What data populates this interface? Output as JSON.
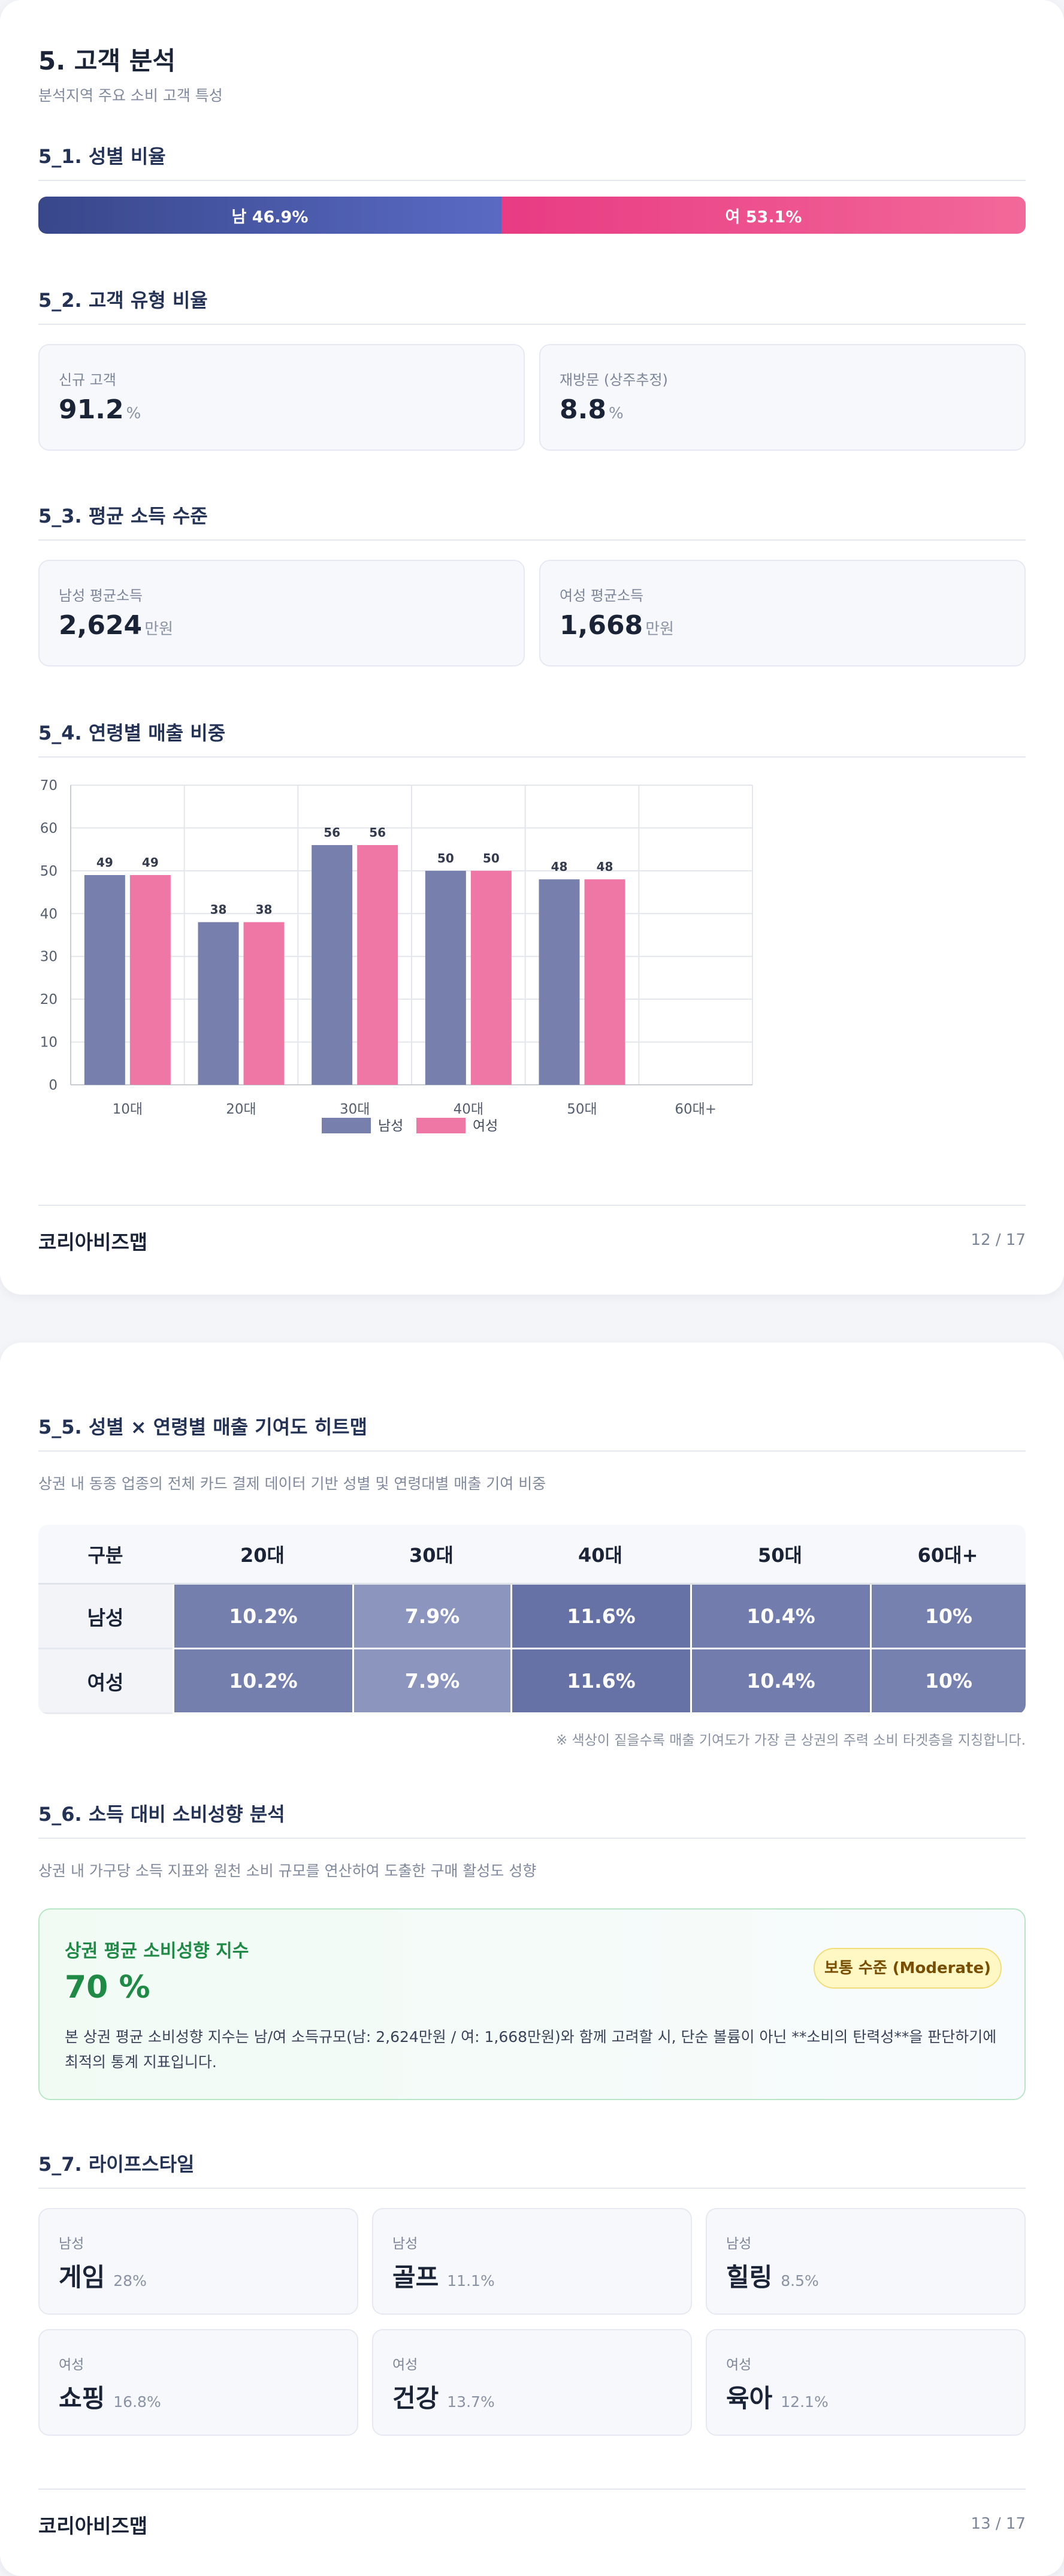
{
  "page1": {
    "title": "5. 고객 분석",
    "subtitle": "분석지역 주요 소비 고객 특성",
    "gender": {
      "heading": "5_1. 성별 비율",
      "male_label": "남 46.9%",
      "female_label": "여 53.1%",
      "male_share": 46.9,
      "female_share": 53.1
    },
    "customer_type": {
      "heading": "5_2. 고객 유형 비율",
      "cards": [
        {
          "label": "신규 고객",
          "value": "91.2",
          "unit": "%"
        },
        {
          "label": "재방문 (상주추정)",
          "value": "8.8",
          "unit": "%"
        }
      ]
    },
    "income": {
      "heading": "5_3. 평균 소득 수준",
      "cards": [
        {
          "label": "남성 평균소득",
          "value": "2,624",
          "unit": "만원"
        },
        {
          "label": "여성 평균소득",
          "value": "1,668",
          "unit": "만원"
        }
      ]
    },
    "age_sales": {
      "heading": "5_4. 연령별 매출 비중"
    },
    "footer": {
      "brand": "코리아비즈맵",
      "page": "12 / 17"
    }
  },
  "chart_data": {
    "type": "bar",
    "categories": [
      "10대",
      "20대",
      "30대",
      "40대",
      "50대",
      "60대+"
    ],
    "series": [
      {
        "name": "남성",
        "values": [
          49,
          38,
          56,
          50,
          48,
          null
        ],
        "color": "#7780ad"
      },
      {
        "name": "여성",
        "values": [
          49,
          38,
          56,
          50,
          48,
          null
        ],
        "color": "#ef77a6"
      }
    ],
    "ylim": [
      0,
      70
    ],
    "yticks": [
      0,
      10,
      20,
      30,
      40,
      50,
      60,
      70
    ],
    "grid": true,
    "legend": "bottom-center",
    "data_labels": true
  },
  "page2": {
    "heatmap": {
      "heading": "5_5. 성별 × 연령별 매출 기여도 히트맵",
      "desc": "상권 내 동종 업종의 전체 카드 결제 데이터 기반 성별 및 연령대별 매출 기여 비중",
      "corner": "구분",
      "columns": [
        "20대",
        "30대",
        "40대",
        "50대",
        "60대+"
      ],
      "rows": [
        {
          "label": "남성",
          "cells": [
            "10.2%",
            "7.9%",
            "11.6%",
            "10.4%",
            "10%"
          ],
          "values": [
            10.2,
            7.9,
            11.6,
            10.4,
            10
          ]
        },
        {
          "label": "여성",
          "cells": [
            "10.2%",
            "7.9%",
            "11.6%",
            "10.4%",
            "10%"
          ],
          "values": [
            10.2,
            7.9,
            11.6,
            10.4,
            10
          ]
        }
      ],
      "colors": {
        "low": "#8c95bd",
        "high": "#6672a5"
      },
      "note": "※ 색상이 짙을수록 매출 기여도가 가장 큰 상권의 주력 소비 타겟층을 지칭합니다."
    },
    "spending": {
      "heading": "5_6. 소득 대비 소비성향 분석",
      "desc": "상권 내 가구당 소득 지표와 원천 소비 규모를 연산하여 도출한 구매 활성도 성향",
      "index_label": "상권 평균 소비성향 지수",
      "index_value": "70 %",
      "badge": "보통 수준 (Moderate)",
      "body": "본 상권 평균 소비성향 지수는 남/여 소득규모(남: 2,624만원 / 여: 1,668만원)와 함께 고려할 시, 단순 볼륨이 아닌 **소비의 탄력성**을 판단하기에 최적의 통계 지표입니다."
    },
    "lifestyle": {
      "heading": "5_7. 라이프스타일",
      "items": [
        {
          "gender": "남성",
          "name": "게임",
          "pct": "28%"
        },
        {
          "gender": "남성",
          "name": "골프",
          "pct": "11.1%"
        },
        {
          "gender": "남성",
          "name": "힐링",
          "pct": "8.5%"
        },
        {
          "gender": "여성",
          "name": "쇼핑",
          "pct": "16.8%"
        },
        {
          "gender": "여성",
          "name": "건강",
          "pct": "13.7%"
        },
        {
          "gender": "여성",
          "name": "육아",
          "pct": "12.1%"
        }
      ]
    },
    "footer": {
      "brand": "코리아비즈맵",
      "page": "13 / 17"
    }
  }
}
